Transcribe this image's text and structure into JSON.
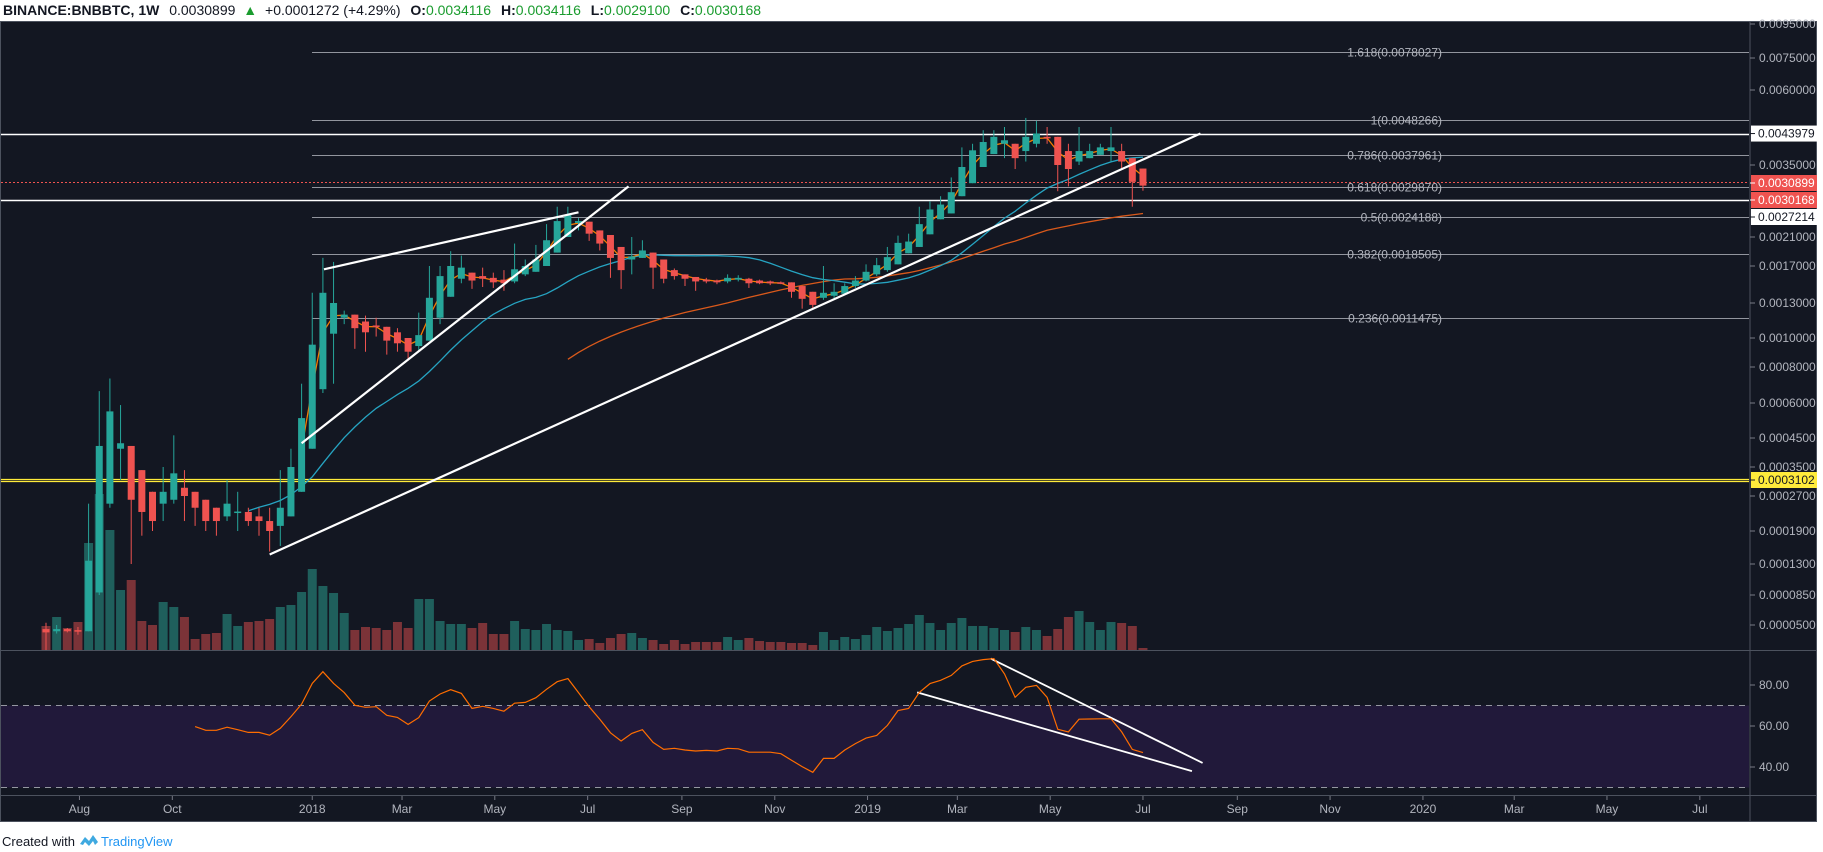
{
  "header": {
    "symbol": "BINANCE:BNBBTC, 1W",
    "last": "0.0030899",
    "change": "+0.0001272 (+4.29%)",
    "o_label": "O:",
    "o": "0.0034116",
    "h_label": "H:",
    "h": "0.0034116",
    "l_label": "L:",
    "l": "0.0029100",
    "c_label": "C:",
    "c": "0.0030168",
    "up_icon": "triangle-up-icon"
  },
  "footer": {
    "created_with": "Created with",
    "brand": "TradingView",
    "logo_icon": "tradingview-logo-icon"
  },
  "colors": {
    "background": "#131722",
    "up": "#26a69a",
    "down": "#ef5350",
    "vol_up": "#1f5f5c",
    "vol_down": "#7b3338",
    "ema_fast": "#f57c00",
    "ma_mid": "#26a4c2",
    "ma_slow": "#d9591b",
    "rsi": "#ff6d00",
    "rsi_band": "#21193a",
    "yellow": "#ffeb3b",
    "fib": "#b2b5be"
  },
  "chart_data": {
    "type": "candlestick",
    "title": "BINANCE:BNBBTC, 1W",
    "y_scale": "log",
    "price_ticks": [
      "0.0095000",
      "0.0075000",
      "0.0060000",
      "0.0035000",
      "0.0021000",
      "0.0017000",
      "0.0013000",
      "0.0010000",
      "0.0008000",
      "0.0006000",
      "0.0004500",
      "0.0003500",
      "0.0002700",
      "0.0001900",
      "0.0001300",
      "0.0000850",
      "0.0000500"
    ],
    "time_ticks": [
      {
        "label": "Aug",
        "week": 3.14
      },
      {
        "label": "Oct",
        "week": 11.86
      },
      {
        "label": "2018",
        "week": 25
      },
      {
        "label": "Mar",
        "week": 33.43
      },
      {
        "label": "May",
        "week": 42.14
      },
      {
        "label": "Jul",
        "week": 50.86
      },
      {
        "label": "Sep",
        "week": 59.71
      },
      {
        "label": "Nov",
        "week": 68.43
      },
      {
        "label": "2019",
        "week": 77.14
      },
      {
        "label": "Mar",
        "week": 85.57
      },
      {
        "label": "May",
        "week": 94.29
      },
      {
        "label": "Jul",
        "week": 103
      },
      {
        "label": "Sep",
        "week": 111.86
      },
      {
        "label": "Nov",
        "week": 120.57
      },
      {
        "label": "2020",
        "week": 129.29
      },
      {
        "label": "Mar",
        "week": 137.86
      },
      {
        "label": "May",
        "week": 146.57
      },
      {
        "label": "Jul",
        "week": 155.29
      }
    ],
    "candles_ohlc": [
      [
        4.6e-05,
        5.2e-05,
        3e-05,
        4.3e-05
      ],
      [
        4.4e-05,
        5e-05,
        4.2e-05,
        4.6e-05
      ],
      [
        4.6e-05,
        4.7e-05,
        4.3e-05,
        4.4e-05
      ],
      [
        4.5e-05,
        4.8e-05,
        4.1e-05,
        4.4e-05
      ],
      [
        4.4e-05,
        0.00025,
        4.4e-05,
        0.000135
      ],
      [
        8.8e-05,
        0.00066,
        8.5e-05,
        0.00042
      ],
      [
        0.00025,
        0.00073,
        0.00024,
        0.00056
      ],
      [
        0.00041,
        0.00059,
        0.00031,
        0.00043
      ],
      [
        0.00042,
        0.00042,
        0.00013,
        0.00026
      ],
      [
        0.00034,
        0.00034,
        0.00018,
        0.00023
      ],
      [
        0.00028,
        0.00028,
        0.00019,
        0.00021
      ],
      [
        0.00025,
        0.00035,
        0.00021,
        0.00028
      ],
      [
        0.00026,
        0.00046,
        0.00025,
        0.00033
      ],
      [
        0.00029,
        0.00034,
        0.00021,
        0.00027
      ],
      [
        0.00028,
        0.00028,
        0.0002,
        0.00024
      ],
      [
        0.00026,
        0.00026,
        0.00019,
        0.00021
      ],
      [
        0.00024,
        0.00024,
        0.00018,
        0.00021
      ],
      [
        0.00022,
        0.00031,
        0.00021,
        0.00025
      ],
      [
        0.00023,
        0.00028,
        0.00019,
        0.000231
      ],
      [
        0.00023,
        0.00024,
        0.0002,
        0.00021
      ],
      [
        0.00022,
        0.00024,
        0.00018,
        0.00021
      ],
      [
        0.00021,
        0.00024,
        0.00015,
        0.00019
      ],
      [
        0.0002,
        0.00034,
        0.00016,
        0.00024
      ],
      [
        0.00022,
        0.00041,
        0.00022,
        0.00035
      ],
      [
        0.00028,
        0.0007,
        0.00028,
        0.00053
      ],
      [
        0.00041,
        0.0014,
        0.00041,
        0.00095
      ],
      [
        0.00067,
        0.0018,
        0.00065,
        0.0014
      ],
      [
        0.00103,
        0.00175,
        0.0007,
        0.0013
      ],
      [
        0.00115,
        0.00122,
        0.0011,
        0.00118
      ],
      [
        0.00118,
        0.00118,
        0.00092,
        0.00107
      ],
      [
        0.00112,
        0.00117,
        0.0009,
        0.00104
      ],
      [
        0.00109,
        0.00115,
        0.00101,
        0.00108
      ],
      [
        0.00108,
        0.00108,
        0.00088,
        0.00098
      ],
      [
        0.00104,
        0.00107,
        0.0009,
        0.00096
      ],
      [
        0.001,
        0.001,
        0.00084,
        0.0009
      ],
      [
        0.00094,
        0.0012,
        0.0009,
        0.00102
      ],
      [
        0.00098,
        0.0017,
        0.00098,
        0.00135
      ],
      [
        0.00115,
        0.0017,
        0.0011,
        0.00158
      ],
      [
        0.00136,
        0.00189,
        0.00136,
        0.0017
      ],
      [
        0.00155,
        0.00183,
        0.0015,
        0.00168
      ],
      [
        0.00162,
        0.00162,
        0.00144,
        0.00153
      ],
      [
        0.00158,
        0.00168,
        0.00146,
        0.00155
      ],
      [
        0.00156,
        0.00162,
        0.00145,
        0.00151
      ],
      [
        0.00154,
        0.00165,
        0.00142,
        0.0015
      ],
      [
        0.00152,
        0.002,
        0.0015,
        0.00166
      ],
      [
        0.0016,
        0.00178,
        0.00158,
        0.0017
      ],
      [
        0.00163,
        0.00198,
        0.00163,
        0.00178
      ],
      [
        0.0017,
        0.0023,
        0.0017,
        0.00205
      ],
      [
        0.00187,
        0.0026,
        0.00187,
        0.00235
      ],
      [
        0.0021,
        0.0026,
        0.0021,
        0.00245
      ],
      [
        0.00232,
        0.0024,
        0.0022,
        0.00235
      ],
      [
        0.00234,
        0.00234,
        0.00204,
        0.00215
      ],
      [
        0.0022,
        0.0022,
        0.0019,
        0.002
      ],
      [
        0.00213,
        0.00213,
        0.00156,
        0.0018
      ],
      [
        0.00195,
        0.00195,
        0.00144,
        0.00165
      ],
      [
        0.00178,
        0.0021,
        0.0016,
        0.00182
      ],
      [
        0.0018,
        0.00205,
        0.0018,
        0.0019
      ],
      [
        0.00187,
        0.00187,
        0.00144,
        0.00168
      ],
      [
        0.00178,
        0.00178,
        0.0015,
        0.00155
      ],
      [
        0.00165,
        0.00167,
        0.00154,
        0.00158
      ],
      [
        0.0016,
        0.0016,
        0.00147,
        0.00155
      ],
      [
        0.00157,
        0.00157,
        0.00142,
        0.00152
      ],
      [
        0.00154,
        0.00156,
        0.0015,
        0.00152
      ],
      [
        0.00153,
        0.00154,
        0.00149,
        0.00151
      ],
      [
        0.00152,
        0.0016,
        0.0015,
        0.00156
      ],
      [
        0.00154,
        0.00159,
        0.00152,
        0.00156
      ],
      [
        0.00155,
        0.00156,
        0.00145,
        0.0015
      ],
      [
        0.00153,
        0.00154,
        0.00149,
        0.0015
      ],
      [
        0.00152,
        0.00153,
        0.00148,
        0.0015
      ],
      [
        0.00151,
        0.00152,
        0.00149,
        0.0015
      ],
      [
        0.00151,
        0.00151,
        0.00135,
        0.00141
      ],
      [
        0.00147,
        0.00147,
        0.00124,
        0.00134
      ],
      [
        0.00141,
        0.00141,
        0.00124,
        0.00128
      ],
      [
        0.00135,
        0.0017,
        0.00133,
        0.0014
      ],
      [
        0.00137,
        0.0015,
        0.00133,
        0.00141
      ],
      [
        0.00139,
        0.0015,
        0.00138,
        0.00147
      ],
      [
        0.00147,
        0.00158,
        0.00145,
        0.00153
      ],
      [
        0.00153,
        0.00172,
        0.00152,
        0.00163
      ],
      [
        0.0016,
        0.0018,
        0.00158,
        0.00171
      ],
      [
        0.00165,
        0.00195,
        0.00163,
        0.00181
      ],
      [
        0.00172,
        0.00212,
        0.00172,
        0.00201
      ],
      [
        0.00186,
        0.00215,
        0.00186,
        0.00203
      ],
      [
        0.00195,
        0.0026,
        0.00195,
        0.0023
      ],
      [
        0.00214,
        0.0027,
        0.00214,
        0.00255
      ],
      [
        0.00238,
        0.0028,
        0.00238,
        0.00264
      ],
      [
        0.00248,
        0.0032,
        0.00248,
        0.00288
      ],
      [
        0.0028,
        0.004,
        0.0028,
        0.00345
      ],
      [
        0.00307,
        0.0041,
        0.00307,
        0.00392
      ],
      [
        0.00345,
        0.0045,
        0.00345,
        0.00415
      ],
      [
        0.00382,
        0.0045,
        0.00382,
        0.0043
      ],
      [
        0.0041,
        0.0046,
        0.0037,
        0.0042
      ],
      [
        0.0041,
        0.0041,
        0.0034,
        0.0037
      ],
      [
        0.0039,
        0.0049,
        0.0036,
        0.0043
      ],
      [
        0.0041,
        0.0048,
        0.004,
        0.0044
      ],
      [
        0.0043,
        0.0046,
        0.0041,
        0.00428
      ],
      [
        0.0043,
        0.0043,
        0.0029,
        0.0035
      ],
      [
        0.0039,
        0.0041,
        0.003,
        0.0034
      ],
      [
        0.0036,
        0.0046,
        0.0035,
        0.0039
      ],
      [
        0.0037,
        0.0041,
        0.0037,
        0.0039
      ],
      [
        0.0038,
        0.0041,
        0.0038,
        0.004
      ],
      [
        0.0039,
        0.0046,
        0.0036,
        0.004
      ],
      [
        0.0039,
        0.0041,
        0.0034,
        0.0036
      ],
      [
        0.0037,
        0.0037,
        0.0026,
        0.0031
      ],
      [
        0.0034116,
        0.0034116,
        0.00291,
        0.0030168
      ]
    ],
    "volume_relative": [
      24,
      33,
      22,
      28,
      107,
      156,
      120,
      60,
      70,
      29,
      25,
      48,
      43,
      33,
      11,
      16,
      17,
      36,
      24,
      28,
      29,
      31,
      43,
      45,
      58,
      81,
      64,
      57,
      37,
      20,
      23,
      22,
      20,
      28,
      22,
      51,
      51,
      29,
      26,
      26,
      22,
      27,
      16,
      16,
      29,
      21,
      20,
      26,
      20,
      19,
      10,
      11,
      7,
      12,
      16,
      17,
      12,
      10,
      6,
      10,
      6,
      8,
      8,
      8,
      13,
      10,
      12,
      9,
      8,
      8,
      7,
      7,
      5,
      18,
      10,
      13,
      11,
      15,
      23,
      19,
      22,
      26,
      35,
      27,
      20,
      27,
      32,
      24,
      24,
      22,
      20,
      18,
      23,
      20,
      14,
      21,
      33,
      39,
      28,
      20,
      28,
      27,
      24,
      2
    ],
    "rsi": {
      "start_week": 14,
      "ticks": [
        "80.00",
        "60.00",
        "40.00"
      ],
      "overbought": 70,
      "oversold": 30,
      "values": [
        59.7,
        57.9,
        57.9,
        59.4,
        58.2,
        56.9,
        56.9,
        55.5,
        58.9,
        64.6,
        70.7,
        80.8,
        86.5,
        80.8,
        76.3,
        70.1,
        69.1,
        69.4,
        65.2,
        64.2,
        60.8,
        64.1,
        72.2,
        75.6,
        77.7,
        75.9,
        68.6,
        69.6,
        68.6,
        67.2,
        71.1,
        71.5,
        73.8,
        77.9,
        81.6,
        83.1,
        76.3,
        69.4,
        63.3,
        56.7,
        52.7,
        56.4,
        58.2,
        52,
        48.6,
        49.1,
        48.3,
        47.8,
        48.1,
        47.8,
        49.1,
        48.9,
        47.2,
        47.2,
        47.2,
        46.5,
        43.3,
        40.2,
        37.4,
        44.2,
        44.2,
        48.3,
        51.4,
        54.1,
        55.4,
        60.3,
        67.5,
        68.6,
        76.4,
        80.7,
        82.3,
        84.7,
        89.3,
        91.5,
        92.4,
        92.9,
        85.4,
        74,
        78.9,
        79.8,
        74,
        58.4,
        57.1,
        63.3,
        63.4,
        63.5,
        63.5,
        57.1,
        48.6,
        47
      ]
    },
    "fib_levels": [
      {
        "label": "1.618(0.0078027)",
        "price": 0.0078027
      },
      {
        "label": "1(0.0048266)",
        "price": 0.0048266
      },
      {
        "label": "0.786(0.0037961)",
        "price": 0.0037961
      },
      {
        "label": "0.618(0.0029870)",
        "price": 0.002987
      },
      {
        "label": "0.5(0.0024188)",
        "price": 0.0024188
      },
      {
        "label": "0.382(0.0018505)",
        "price": 0.0018505
      },
      {
        "label": "0.236(0.0011475)",
        "price": 0.0011475
      }
    ],
    "horizontal_lines": [
      {
        "label": "0.0043979",
        "price": 0.0043979,
        "style": "white"
      },
      {
        "label": "0.0030899",
        "price": 0.0030899,
        "style": "last-dotted"
      },
      {
        "label": "0.0030168",
        "price": 0.0030168,
        "style": "close-label"
      },
      {
        "label": "0.0027214",
        "price": 0.0027214,
        "style": "white"
      },
      {
        "label": "0.0003102",
        "price": 0.0003102,
        "style": "yellow"
      }
    ],
    "trendlines_price": [
      {
        "name": "long-support",
        "from": [
          21,
          0.000145
        ],
        "to": [
          108.4,
          0.0043979
        ]
      },
      {
        "name": "wedge-lower",
        "from": [
          24,
          0.00043
        ],
        "to": [
          54.7,
          0.003
        ]
      },
      {
        "name": "wedge-upper",
        "from": [
          26.1,
          0.00166
        ],
        "to": [
          50,
          0.0025
        ]
      }
    ],
    "trendlines_rsi": [
      {
        "name": "rsi-upper",
        "from": [
          88.7,
          92.9
        ],
        "to": [
          108.6,
          42
        ]
      },
      {
        "name": "rsi-lower",
        "from": [
          81.8,
          76.4
        ],
        "to": [
          107.6,
          38
        ]
      }
    ]
  }
}
